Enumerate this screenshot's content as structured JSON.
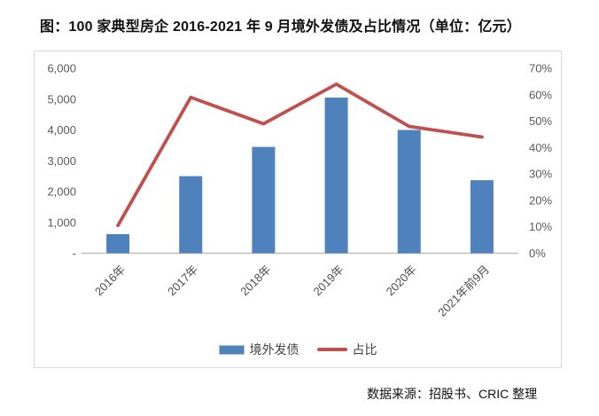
{
  "title": "图：100 家典型房企 2016-2021 年 9 月境外发债及占比情况（单位：亿元）",
  "source_note": "数据来源：招股书、CRIC 整理",
  "legend": {
    "bar_label": "境外发债",
    "line_label": "占比"
  },
  "colors": {
    "bar": "#4F81BD",
    "line": "#C0504D",
    "axis_text": "#595959",
    "axis_line": "#bfbfbf",
    "frame_border": "#d9d9d9"
  },
  "chart_data": {
    "type": "bar",
    "subtype": "combo bar + line, dual axis",
    "title": "图：100 家典型房企 2016-2021 年 9 月境外发债及占比情况（单位：亿元）",
    "categories": [
      "2016年",
      "2017年",
      "2018年",
      "2019年",
      "2020年",
      "2021年前9月"
    ],
    "series": [
      {
        "name": "境外发债",
        "type": "bar",
        "axis": "left",
        "unit": "亿元",
        "values": [
          620,
          2500,
          3450,
          5050,
          4000,
          2370
        ]
      },
      {
        "name": "占比",
        "type": "line",
        "axis": "right",
        "unit": "%",
        "values": [
          10.5,
          59,
          49,
          64,
          48,
          44
        ]
      }
    ],
    "left_axis": {
      "min": 0,
      "max": 6000,
      "tick_labels": [
        "6,000",
        "5,000",
        "4,000",
        "3,000",
        "2,000",
        "1,000",
        "-"
      ]
    },
    "right_axis": {
      "min": 0,
      "max": 70,
      "tick_labels": [
        "70%",
        "60%",
        "50%",
        "40%",
        "30%",
        "20%",
        "10%",
        "0%"
      ]
    },
    "grid": false,
    "legend_position": "bottom",
    "x_label_rotation_deg": -45
  }
}
